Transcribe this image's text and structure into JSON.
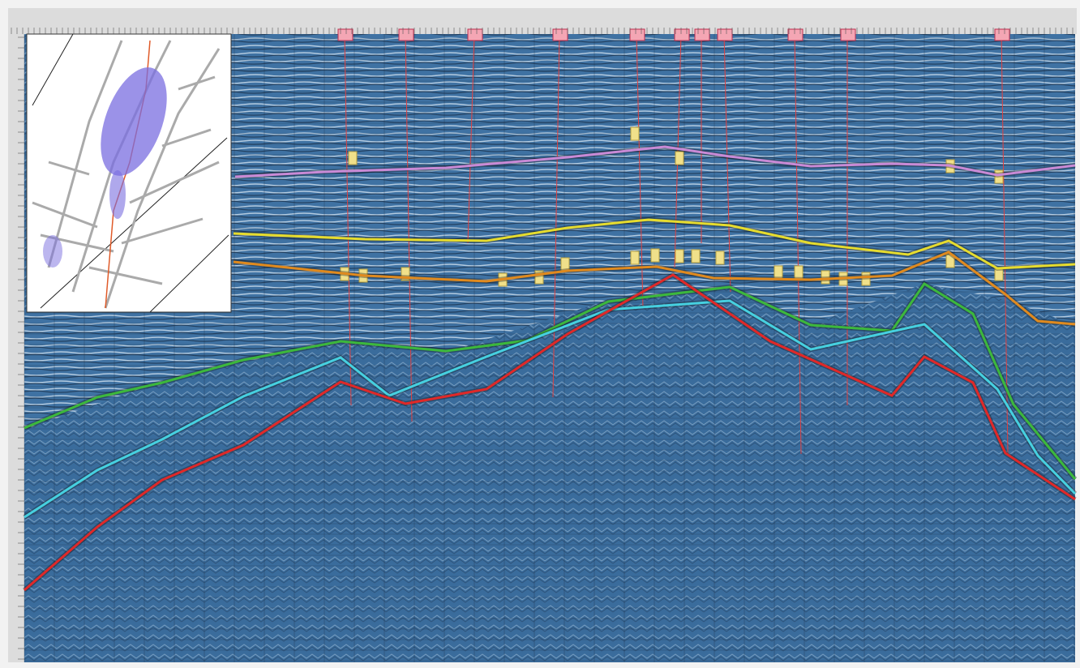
{
  "section": {
    "horizons": [
      {
        "color": "#c98ad6"
      },
      {
        "color": "#e6dc2e"
      },
      {
        "color": "#e08a1e"
      },
      {
        "color": "#3cb83c"
      },
      {
        "color": "#46d0e0"
      },
      {
        "color": "#e02828"
      }
    ]
  }
}
